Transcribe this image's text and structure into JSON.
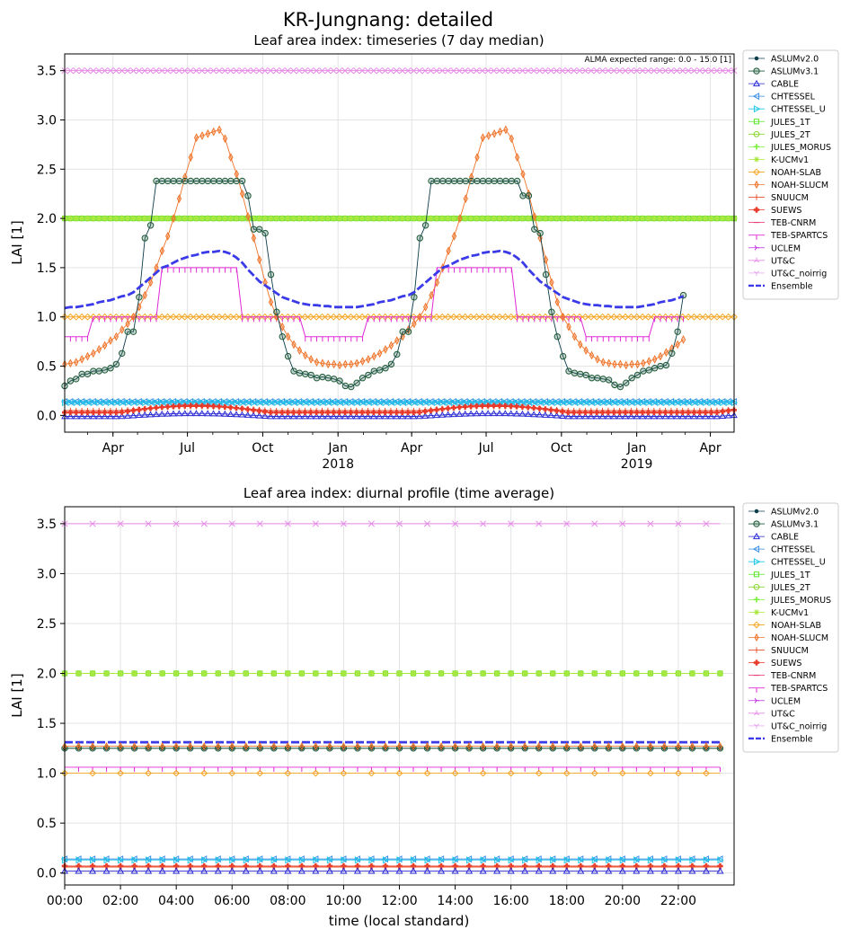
{
  "figure": {
    "suptitle": "KR-Jungnang: detailed"
  },
  "colors": {
    "ASLUMv2.0": "#0b3d4a",
    "ASLUMv3.1": "#1f5a3a",
    "CABLE": "#2a2ad6",
    "CHTESSEL": "#3a8ee6",
    "CHTESSEL_U": "#1fc8e8",
    "JULES_1T": "#5ae62a",
    "JULES_2T": "#8ad62a",
    "JULES_MORUS": "#7af03a",
    "K-UCMv1": "#a8e83a",
    "NOAH-SLAB": "#f5a623",
    "NOAH-SLUCM": "#f0742a",
    "SNUUCM": "#e8502a",
    "SUEWS": "#e83a2a",
    "TEB-CNRM": "#e82a6a",
    "TEB-SPARTCS": "#e02ad6",
    "UCLEM": "#c02ae8",
    "UT&C": "#e88ae8",
    "UT&C_noirrig": "#e8a8f0",
    "Ensemble": "#3a3ae8"
  },
  "legend": {
    "entries": [
      "ASLUMv2.0",
      "ASLUMv3.1",
      "CABLE",
      "CHTESSEL",
      "CHTESSEL_U",
      "JULES_1T",
      "JULES_2T",
      "JULES_MORUS",
      "K-UCMv1",
      "NOAH-SLAB",
      "NOAH-SLUCM",
      "SNUUCM",
      "SUEWS",
      "TEB-CNRM",
      "TEB-SPARTCS",
      "UCLEM",
      "UT&C",
      "UT&C_noirrig",
      "Ensemble"
    ],
    "markers": [
      "dot",
      "circle",
      "triangle-up",
      "triangle-left",
      "triangle-right",
      "square",
      "hexagon",
      "plus",
      "star",
      "diamond",
      "thin-diamond",
      "vline",
      "filled-plus",
      "hline",
      "tick-down",
      "tri-right",
      "tri-up",
      "tri-down",
      "dash"
    ]
  },
  "chart_data": [
    {
      "type": "line",
      "title": "Leaf area index: timeseries (7 day median)",
      "ylabel": "LAI [1]",
      "xlabel": "",
      "annotation": "ALMA expected range: 0.0 - 15.0 [1]",
      "x_range": [
        "2017-02-01",
        "2019-04-30"
      ],
      "xticks": [
        {
          "date": "2017-04-01",
          "label": "Apr",
          "year": ""
        },
        {
          "date": "2017-07-01",
          "label": "Jul",
          "year": ""
        },
        {
          "date": "2017-10-01",
          "label": "Oct",
          "year": ""
        },
        {
          "date": "2018-01-01",
          "label": "Jan",
          "year": "2018"
        },
        {
          "date": "2018-04-01",
          "label": "Apr",
          "year": ""
        },
        {
          "date": "2018-07-01",
          "label": "Jul",
          "year": ""
        },
        {
          "date": "2018-10-01",
          "label": "Oct",
          "year": ""
        },
        {
          "date": "2019-01-01",
          "label": "Jan",
          "year": "2019"
        },
        {
          "date": "2019-04-01",
          "label": "Apr",
          "year": ""
        }
      ],
      "ylim": [
        -0.17,
        3.67
      ],
      "yticks": [
        "0.0",
        "0.5",
        "1.0",
        "1.5",
        "2.0",
        "2.5",
        "3.0",
        "3.5"
      ],
      "grid": true,
      "legend_position": "outside right",
      "series_note": "weekly values",
      "series": {
        "ASLUMv2.0": {
          "start": "2017-02-01",
          "step_days": 7,
          "values": [
            0.3,
            0.35,
            0.37,
            0.42,
            0.42,
            0.45,
            0.45,
            0.46,
            0.48,
            0.52,
            0.63,
            0.85,
            0.85,
            1.2,
            1.8,
            1.93,
            2.38,
            2.38,
            2.38,
            2.38,
            2.38,
            2.38,
            2.38,
            2.38,
            2.38,
            2.38,
            2.38,
            2.38,
            2.38,
            2.38,
            2.38,
            2.38,
            2.23,
            1.89,
            1.89,
            1.85,
            1.43,
            1.05,
            0.8,
            0.6,
            0.45,
            0.43,
            0.42,
            0.41,
            0.38,
            0.39,
            0.38,
            0.37,
            0.35,
            0.3,
            0.29,
            0.33,
            0.38,
            0.41,
            0.45,
            0.46,
            0.48,
            0.52,
            0.62,
            0.85,
            0.85,
            1.2,
            1.8,
            1.93,
            2.38,
            2.38,
            2.38,
            2.38,
            2.38,
            2.38,
            2.38,
            2.38,
            2.38,
            2.38,
            2.38,
            2.38,
            2.38,
            2.38,
            2.38,
            2.38,
            2.23,
            2.23,
            1.89,
            1.85,
            1.43,
            1.05,
            0.8,
            0.6,
            0.45,
            0.43,
            0.42,
            0.41,
            0.38,
            0.38,
            0.37,
            0.36,
            0.31,
            0.29,
            0.33,
            0.38,
            0.41,
            0.45,
            0.46,
            0.48,
            0.5,
            0.51,
            0.63,
            0.85,
            1.22
          ]
        },
        "NOAH-SLUCM": {
          "start": "2017-02-01",
          "step_days": 7,
          "values": [
            0.52,
            0.53,
            0.54,
            0.57,
            0.6,
            0.63,
            0.67,
            0.71,
            0.76,
            0.8,
            0.87,
            0.93,
            1.0,
            1.1,
            1.22,
            1.35,
            1.5,
            1.67,
            1.82,
            2.0,
            2.2,
            2.42,
            2.62,
            2.82,
            2.84,
            2.86,
            2.88,
            2.9,
            2.81,
            2.62,
            2.45,
            2.25,
            2.02,
            1.8,
            1.58,
            1.35,
            1.15,
            1.0,
            0.9,
            0.8,
            0.72,
            0.66,
            0.61,
            0.57,
            0.54,
            0.53,
            0.52,
            0.52,
            0.51,
            0.52,
            0.52,
            0.53,
            0.55,
            0.57,
            0.6,
            0.63,
            0.67,
            0.71,
            0.76,
            0.8,
            0.87,
            0.93,
            1.0,
            1.1,
            1.22,
            1.35,
            1.5,
            1.67,
            1.82,
            2.0,
            2.2,
            2.42,
            2.62,
            2.82,
            2.84,
            2.86,
            2.88,
            2.9,
            2.81,
            2.62,
            2.45,
            2.25,
            2.02,
            1.8,
            1.58,
            1.35,
            1.15,
            1.0,
            0.9,
            0.8,
            0.72,
            0.66,
            0.61,
            0.57,
            0.54,
            0.53,
            0.52,
            0.52,
            0.51,
            0.52,
            0.52,
            0.53,
            0.55,
            0.57,
            0.6,
            0.64,
            0.68,
            0.72,
            0.77,
            0.82,
            0.88
          ]
        },
        "Ensemble": {
          "start": "2017-02-01",
          "step_days": 7,
          "values": [
            1.09,
            1.1,
            1.1,
            1.11,
            1.12,
            1.13,
            1.15,
            1.16,
            1.17,
            1.19,
            1.21,
            1.22,
            1.25,
            1.3,
            1.35,
            1.4,
            1.45,
            1.5,
            1.52,
            1.55,
            1.58,
            1.6,
            1.62,
            1.63,
            1.65,
            1.66,
            1.66,
            1.67,
            1.66,
            1.64,
            1.6,
            1.55,
            1.48,
            1.42,
            1.36,
            1.32,
            1.28,
            1.24,
            1.2,
            1.18,
            1.16,
            1.14,
            1.13,
            1.12,
            1.12,
            1.11,
            1.11,
            1.1,
            1.1,
            1.1,
            1.1,
            1.1,
            1.11,
            1.12,
            1.13,
            1.15,
            1.16,
            1.17,
            1.19,
            1.21,
            1.22,
            1.25,
            1.3,
            1.35,
            1.4,
            1.45,
            1.5,
            1.52,
            1.55,
            1.58,
            1.6,
            1.62,
            1.63,
            1.65,
            1.66,
            1.66,
            1.67,
            1.66,
            1.64,
            1.6,
            1.55,
            1.48,
            1.42,
            1.36,
            1.32,
            1.28,
            1.24,
            1.2,
            1.18,
            1.16,
            1.14,
            1.13,
            1.12,
            1.12,
            1.11,
            1.11,
            1.1,
            1.1,
            1.1,
            1.1,
            1.1,
            1.11,
            1.12,
            1.13,
            1.15,
            1.16,
            1.17,
            1.19,
            1.21,
            1.22,
            1.25
          ]
        },
        "TEB-SPARTCS": {
          "start": "2017-02-01",
          "step_days": 7,
          "values": [
            0.8,
            0.8,
            0.8,
            0.8,
            0.8,
            1.0,
            1.0,
            1.0,
            1.0,
            1.0,
            1.0,
            1.0,
            1.0,
            1.0,
            1.0,
            1.0,
            1.0,
            1.5,
            1.5,
            1.5,
            1.5,
            1.5,
            1.5,
            1.5,
            1.5,
            1.5,
            1.5,
            1.5,
            1.5,
            1.5,
            1.5,
            1.0,
            1.0,
            1.0,
            1.0,
            1.0,
            1.0,
            1.0,
            1.0,
            1.0,
            1.0,
            1.0,
            0.8,
            0.8,
            0.8,
            0.8,
            0.8,
            0.8,
            0.8,
            0.8,
            0.8,
            0.8,
            0.8,
            1.0,
            1.0,
            1.0,
            1.0,
            1.0,
            1.0,
            1.0,
            1.0,
            1.0,
            1.0,
            1.0,
            1.0,
            1.5,
            1.5,
            1.5,
            1.5,
            1.5,
            1.5,
            1.5,
            1.5,
            1.5,
            1.5,
            1.5,
            1.5,
            1.5,
            1.5,
            1.0,
            1.0,
            1.0,
            1.0,
            1.0,
            1.0,
            1.0,
            1.0,
            1.0,
            1.0,
            1.0,
            1.0,
            0.8,
            0.8,
            0.8,
            0.8,
            0.8,
            0.8,
            0.8,
            0.8,
            0.8,
            0.8,
            0.8,
            0.8,
            1.0,
            1.0,
            1.0,
            1.0,
            1.0,
            1.0,
            1.0,
            1.0
          ]
        },
        "UT&C": {
          "constant": 3.5
        },
        "JULES_1T": {
          "constant": 2.0
        },
        "JULES_2T": {
          "constant": 2.0
        },
        "JULES_MORUS": {
          "constant": 2.0
        },
        "K-UCMv1": {
          "constant": 2.0
        },
        "NOAH-SLAB": {
          "constant": 1.0
        },
        "CHTESSEL": {
          "constant": 0.14
        },
        "CHTESSEL_U": {
          "constant": 0.13
        },
        "SUEWS": {
          "seasonal": {
            "base": 0.03,
            "amp": 0.07
          }
        },
        "CABLE": {
          "seasonal": {
            "base": -0.01,
            "amp": 0.03
          }
        },
        "SNUUCM": {
          "seasonal": {
            "base": 0.05,
            "amp": 0.04
          }
        }
      }
    },
    {
      "type": "line",
      "title": "Leaf area index: diurnal profile (time average)",
      "xlabel": "time (local standard)",
      "ylabel": "LAI [1]",
      "xticks": [
        "00:00",
        "02:00",
        "04:00",
        "06:00",
        "08:00",
        "10:00",
        "12:00",
        "14:00",
        "16:00",
        "18:00",
        "20:00",
        "22:00"
      ],
      "x_range_hours": [
        0,
        24
      ],
      "ylim": [
        -0.12,
        3.67
      ],
      "yticks": [
        "0.0",
        "0.5",
        "1.0",
        "1.5",
        "2.0",
        "2.5",
        "3.0",
        "3.5"
      ],
      "grid": true,
      "legend_position": "outside right",
      "series_note": "half-hourly, constant through the day",
      "series": {
        "UT&C": 3.5,
        "JULES_1T": 2.0,
        "JULES_2T": 2.0,
        "JULES_MORUS": 2.0,
        "K-UCMv1": 2.0,
        "Ensemble": 1.31,
        "ASLUMv2.0": 1.25,
        "ASLUMv3.1": 1.25,
        "NOAH-SLUCM": 1.27,
        "TEB-SPARTCS": 1.06,
        "NOAH-SLAB": 1.0,
        "CHTESSEL": 0.14,
        "CHTESSEL_U": 0.13,
        "SUEWS": 0.07,
        "SNUUCM": 0.06,
        "CABLE": 0.02
      }
    }
  ]
}
